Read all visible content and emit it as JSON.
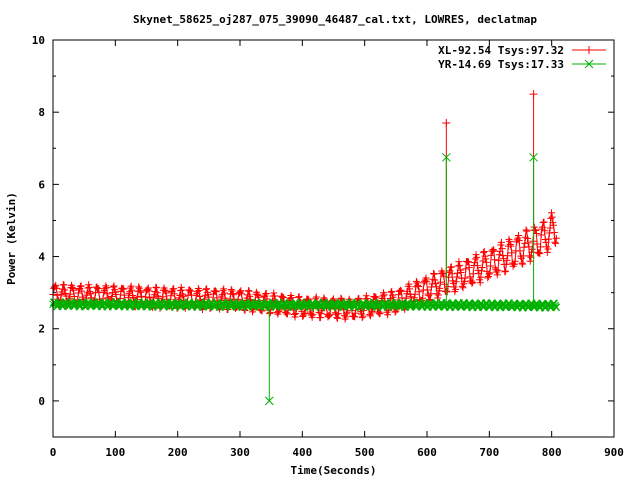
{
  "chart_data": {
    "type": "line",
    "title": "Skynet_58625_oj287_075_39090_46487_cal.txt, LOWRES, declatmap",
    "xlabel": "Time(Seconds)",
    "ylabel": "Power (Kelvin)",
    "xlim": [
      0,
      900
    ],
    "ylim": [
      -1,
      10
    ],
    "xticks": [
      "0",
      "100",
      "200",
      "300",
      "400",
      "500",
      "600",
      "700",
      "800",
      "900"
    ],
    "yticks": [
      "0",
      "2",
      "4",
      "6",
      "8",
      "10"
    ],
    "grid": false,
    "legend_position": "top-right",
    "series": [
      {
        "name": "XL-92.54 Tsys:97.32",
        "color": "#ff0000",
        "marker": "plus",
        "x_range": [
          0,
          808
        ],
        "baseline_knots": [
          [
            0,
            2.95
          ],
          [
            100,
            2.9
          ],
          [
            200,
            2.85
          ],
          [
            300,
            2.8
          ],
          [
            400,
            2.6
          ],
          [
            480,
            2.55
          ],
          [
            550,
            2.75
          ],
          [
            600,
            3.1
          ],
          [
            650,
            3.45
          ],
          [
            700,
            3.8
          ],
          [
            750,
            4.2
          ],
          [
            790,
            4.55
          ],
          [
            808,
            4.85
          ]
        ],
        "oscillation_amplitude": 0.3,
        "oscillation_period_s": 13.5,
        "spikes": [
          {
            "x": 631,
            "y": 7.7
          },
          {
            "x": 771,
            "y": 8.5
          }
        ]
      },
      {
        "name": "YR-14.69 Tsys:17.33",
        "color": "#00b000",
        "marker": "cross",
        "x_range": [
          0,
          808
        ],
        "baseline_knots": [
          [
            0,
            2.68
          ],
          [
            300,
            2.66
          ],
          [
            600,
            2.66
          ],
          [
            808,
            2.64
          ]
        ],
        "oscillation_amplitude": 0.06,
        "oscillation_period_s": 9.0,
        "spikes": [
          {
            "x": 347,
            "y": 0.0
          },
          {
            "x": 631,
            "y": 6.75
          },
          {
            "x": 771,
            "y": 6.75
          }
        ]
      }
    ]
  }
}
